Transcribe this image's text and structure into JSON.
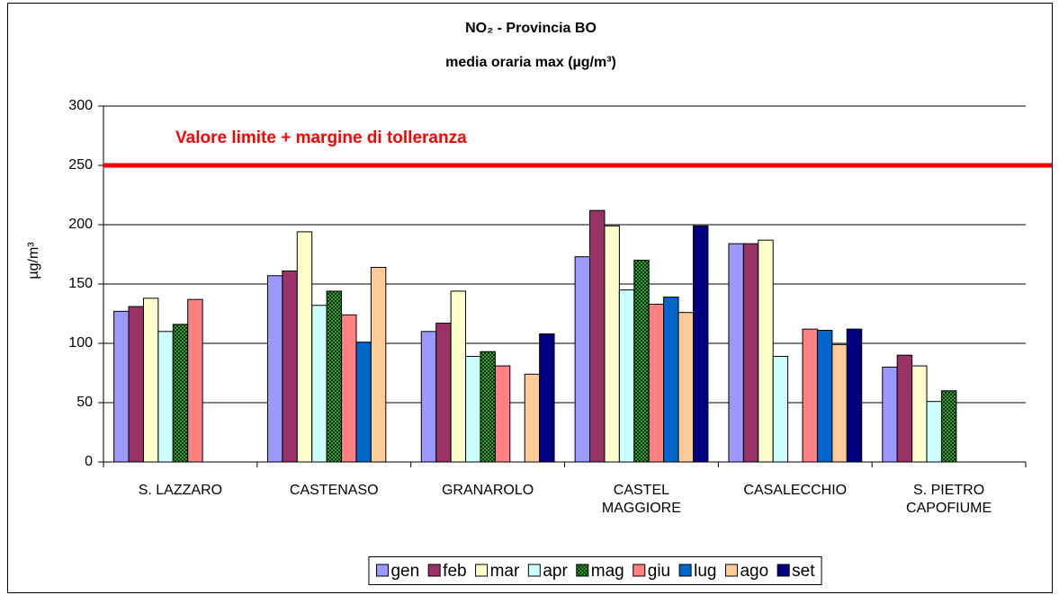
{
  "chart_data": {
    "type": "bar",
    "title": "NO₂ - Provincia BO",
    "subtitle": "media oraria max (µg/m³)",
    "y_label": "µg/m³",
    "categories": [
      "S. LAZZARO",
      "CASTENASO",
      "GRANAROLO",
      "CASTEL MAGGIORE",
      "CASALECCHIO",
      "S. PIETRO CAPOFIUME"
    ],
    "series": [
      {
        "name": "gen",
        "color": "#9999ff",
        "values": [
          127,
          157,
          110,
          173,
          184,
          80
        ]
      },
      {
        "name": "feb",
        "color": "#993366",
        "values": [
          131,
          161,
          117,
          212,
          184,
          90
        ]
      },
      {
        "name": "mar",
        "color": "#ffffcc",
        "values": [
          138,
          194,
          144,
          199,
          187,
          81
        ]
      },
      {
        "name": "apr",
        "color": "#ccffff",
        "values": [
          110,
          132,
          89,
          145,
          89,
          51
        ]
      },
      {
        "name": "mag",
        "color": "#339933",
        "pattern": "checker",
        "values": [
          116,
          144,
          93,
          170,
          null,
          60
        ]
      },
      {
        "name": "giu",
        "color": "#ff8080",
        "values": [
          137,
          124,
          81,
          133,
          112,
          null
        ]
      },
      {
        "name": "lug",
        "color": "#0066cc",
        "values": [
          null,
          101,
          null,
          139,
          111,
          null
        ]
      },
      {
        "name": "ago",
        "color": "#ffcc99",
        "values": [
          null,
          164,
          74,
          126,
          99,
          null
        ]
      },
      {
        "name": "set",
        "color": "#000080",
        "values": [
          null,
          null,
          108,
          199,
          112,
          null
        ]
      }
    ],
    "reference_line": {
      "value": 250,
      "label": "Valore limite + margine di tolleranza",
      "color": "#ff0000"
    },
    "ylim": [
      0,
      300
    ],
    "yticks": [
      0,
      50,
      100,
      150,
      200,
      250,
      300
    ],
    "grid": true,
    "legend": "bottom"
  }
}
